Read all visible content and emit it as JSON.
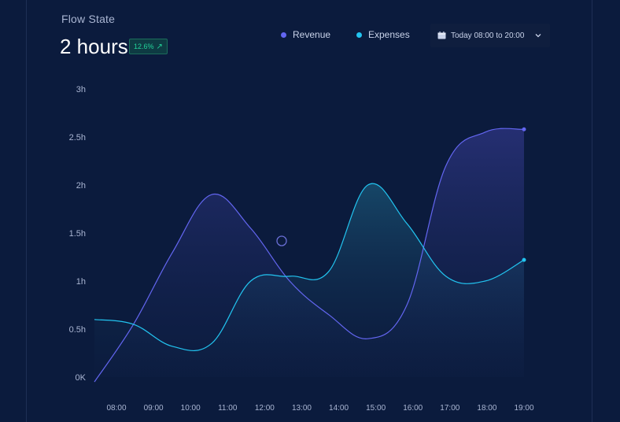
{
  "header": {
    "title": "Flow State",
    "value": "2 hours",
    "badge": "12.6%"
  },
  "legend": {
    "revenue_label": "Revenue",
    "expenses_label": "Expenses"
  },
  "date_range": {
    "label": "Today 08:00 to 20:00",
    "icon": "calendar-icon",
    "dropdown_icon": "chevron-down-icon"
  },
  "colors": {
    "background": "#0b1b3d",
    "revenue": "#6366f1",
    "expenses": "#22c4f0",
    "badge": "#22d39a"
  },
  "chart_data": {
    "type": "area",
    "x": [
      "08:00",
      "09:00",
      "10:00",
      "11:00",
      "12:00",
      "13:00",
      "14:00",
      "15:00",
      "16:00",
      "17:00",
      "18:00",
      "19:00"
    ],
    "yticks": [
      "0K",
      "0.5h",
      "1h",
      "1.5h",
      "2h",
      "2.5h",
      "3h"
    ],
    "ylim": [
      0,
      3
    ],
    "series": [
      {
        "name": "Revenue",
        "values": [
          -0.05,
          0.55,
          1.3,
          1.9,
          1.55,
          1.0,
          0.65,
          0.4,
          0.75,
          2.2,
          2.55,
          2.58
        ]
      },
      {
        "name": "Expenses",
        "values": [
          0.6,
          0.55,
          0.32,
          0.35,
          1.0,
          1.05,
          1.1,
          2.0,
          1.6,
          1.05,
          1.0,
          1.22
        ]
      }
    ],
    "grid": false,
    "legend_position": "top-right"
  }
}
